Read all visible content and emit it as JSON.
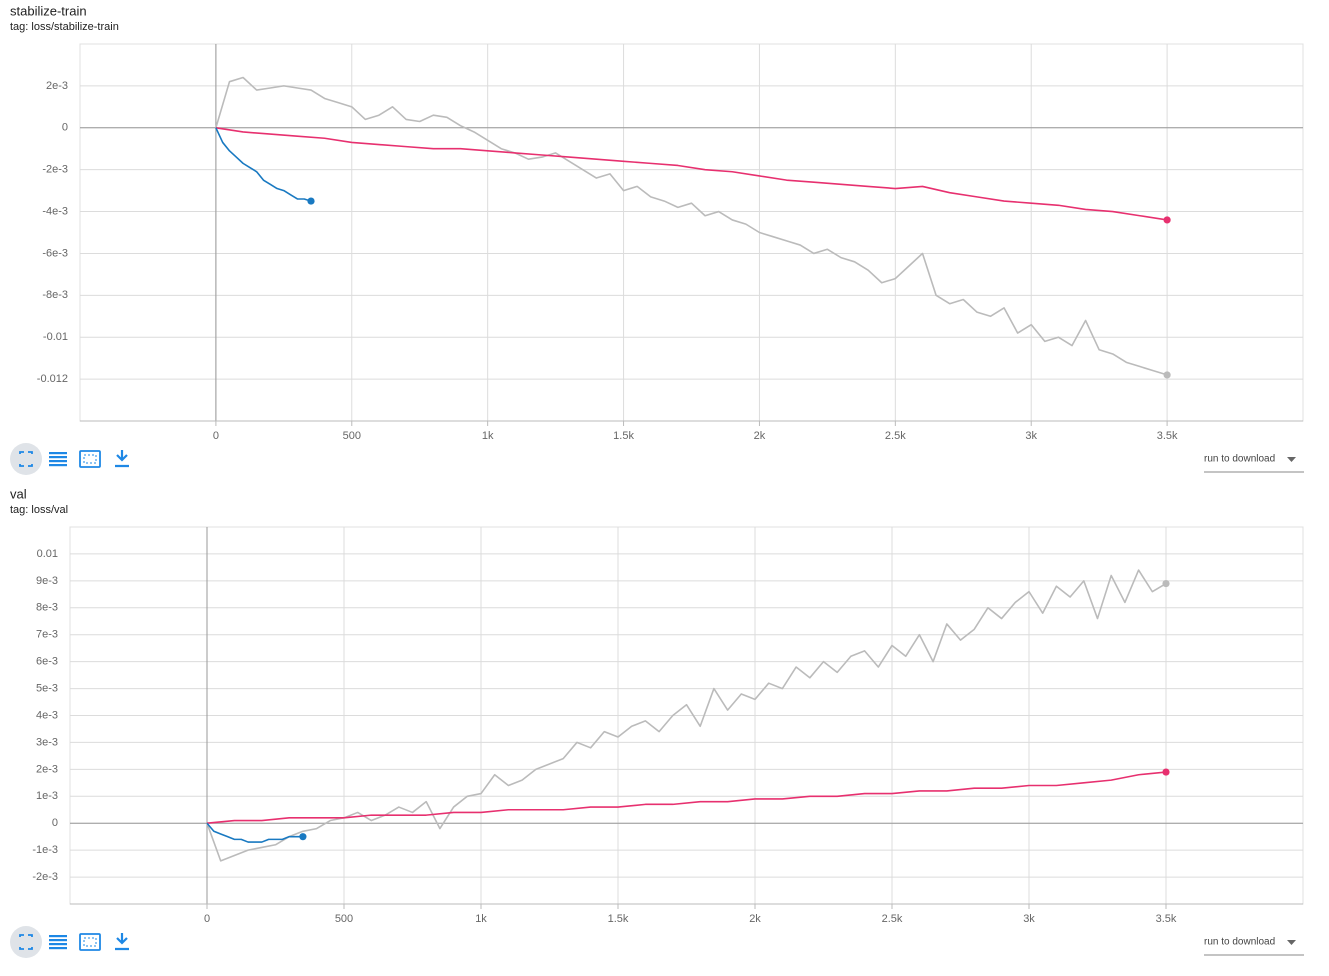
{
  "chart_data": [
    {
      "type": "line",
      "title": "stabilize-train",
      "subtitle": "tag: loss/stabilize-train",
      "xlim": [
        -500,
        4000
      ],
      "xticks": [
        0,
        500,
        {
          "value": 1000,
          "label": "1k"
        },
        {
          "value": 1500,
          "label": "1.5k"
        },
        {
          "value": 2000,
          "label": "2k"
        },
        {
          "value": 2500,
          "label": "2.5k"
        },
        {
          "value": 3000,
          "label": "3k"
        },
        {
          "value": 3500,
          "label": "3.5k"
        }
      ],
      "ylim": [
        -0.014,
        0.004
      ],
      "yticks": [
        {
          "value": 0.002,
          "label": "2e-3"
        },
        0,
        {
          "value": -0.002,
          "label": "-2e-3"
        },
        {
          "value": -0.004,
          "label": "-4e-3"
        },
        {
          "value": -0.006,
          "label": "-6e-3"
        },
        {
          "value": -0.008,
          "label": "-8e-3"
        },
        -0.01,
        -0.012
      ],
      "grid": true,
      "series": [
        {
          "color": "#bbbbbb",
          "x": [
            0,
            50,
            100,
            150,
            200,
            250,
            300,
            350,
            400,
            450,
            500,
            550,
            600,
            650,
            700,
            750,
            800,
            850,
            900,
            950,
            1000,
            1050,
            1100,
            1150,
            1200,
            1250,
            1300,
            1350,
            1400,
            1450,
            1500,
            1550,
            1600,
            1650,
            1700,
            1750,
            1800,
            1850,
            1900,
            1950,
            2000,
            2050,
            2100,
            2150,
            2200,
            2250,
            2300,
            2350,
            2400,
            2450,
            2500,
            2550,
            2600,
            2650,
            2700,
            2750,
            2800,
            2850,
            2900,
            2950,
            3000,
            3050,
            3100,
            3150,
            3200,
            3250,
            3300,
            3350,
            3400,
            3450,
            3500
          ],
          "values": [
            0,
            0.0022,
            0.0024,
            0.0018,
            0.0019,
            0.002,
            0.0019,
            0.0018,
            0.0014,
            0.0012,
            0.001,
            0.0004,
            0.0006,
            0.001,
            0.0004,
            0.0003,
            0.0006,
            0.0005,
            0.0001,
            -0.0002,
            -0.0006,
            -0.001,
            -0.0012,
            -0.0015,
            -0.0014,
            -0.0012,
            -0.0016,
            -0.002,
            -0.0024,
            -0.0022,
            -0.003,
            -0.0028,
            -0.0033,
            -0.0035,
            -0.0038,
            -0.0036,
            -0.0042,
            -0.004,
            -0.0044,
            -0.0046,
            -0.005,
            -0.0052,
            -0.0054,
            -0.0056,
            -0.006,
            -0.0058,
            -0.0062,
            -0.0064,
            -0.0068,
            -0.0074,
            -0.0072,
            -0.0066,
            -0.006,
            -0.008,
            -0.0084,
            -0.0082,
            -0.0088,
            -0.009,
            -0.0086,
            -0.0098,
            -0.0094,
            -0.0102,
            -0.01,
            -0.0104,
            -0.0092,
            -0.0106,
            -0.0108,
            -0.0112,
            -0.0114,
            -0.0116,
            -0.0118
          ]
        },
        {
          "color": "#e7306f",
          "x": [
            0,
            100,
            200,
            300,
            400,
            500,
            600,
            700,
            800,
            900,
            1000,
            1100,
            1200,
            1300,
            1400,
            1500,
            1600,
            1700,
            1800,
            1900,
            2000,
            2100,
            2200,
            2300,
            2400,
            2500,
            2600,
            2700,
            2800,
            2900,
            3000,
            3100,
            3200,
            3300,
            3400,
            3500
          ],
          "values": [
            0,
            -0.0002,
            -0.0003,
            -0.0004,
            -0.0005,
            -0.0007,
            -0.0008,
            -0.0009,
            -0.001,
            -0.001,
            -0.0011,
            -0.0012,
            -0.0013,
            -0.0014,
            -0.0015,
            -0.0016,
            -0.0017,
            -0.0018,
            -0.002,
            -0.0021,
            -0.0023,
            -0.0025,
            -0.0026,
            -0.0027,
            -0.0028,
            -0.0029,
            -0.0028,
            -0.0031,
            -0.0033,
            -0.0035,
            -0.0036,
            -0.0037,
            -0.0039,
            -0.004,
            -0.0042,
            -0.0044
          ]
        },
        {
          "color": "#1979c1",
          "x": [
            0,
            25,
            50,
            75,
            100,
            125,
            150,
            175,
            200,
            225,
            250,
            275,
            300,
            325,
            350
          ],
          "values": [
            0,
            -0.0007,
            -0.0011,
            -0.0014,
            -0.0017,
            -0.0019,
            -0.0021,
            -0.0025,
            -0.0027,
            -0.0029,
            -0.003,
            -0.0032,
            -0.0034,
            -0.0034,
            -0.0035
          ]
        }
      ]
    },
    {
      "type": "line",
      "title": "val",
      "subtitle": "tag: loss/val",
      "xlim": [
        -500,
        4000
      ],
      "xticks": [
        0,
        500,
        {
          "value": 1000,
          "label": "1k"
        },
        {
          "value": 1500,
          "label": "1.5k"
        },
        {
          "value": 2000,
          "label": "2k"
        },
        {
          "value": 2500,
          "label": "2.5k"
        },
        {
          "value": 3000,
          "label": "3k"
        },
        {
          "value": 3500,
          "label": "3.5k"
        }
      ],
      "ylim": [
        -0.003,
        0.011
      ],
      "yticks": [
        0.01,
        {
          "value": 0.009,
          "label": "9e-3"
        },
        {
          "value": 0.008,
          "label": "8e-3"
        },
        {
          "value": 0.007,
          "label": "7e-3"
        },
        {
          "value": 0.006,
          "label": "6e-3"
        },
        {
          "value": 0.005,
          "label": "5e-3"
        },
        {
          "value": 0.004,
          "label": "4e-3"
        },
        {
          "value": 0.003,
          "label": "3e-3"
        },
        {
          "value": 0.002,
          "label": "2e-3"
        },
        {
          "value": 0.001,
          "label": "1e-3"
        },
        0,
        {
          "value": -0.001,
          "label": "-1e-3"
        },
        {
          "value": -0.002,
          "label": "-2e-3"
        }
      ],
      "grid": true,
      "series": [
        {
          "color": "#bbbbbb",
          "x": [
            0,
            50,
            100,
            150,
            200,
            250,
            300,
            350,
            400,
            450,
            500,
            550,
            600,
            650,
            700,
            750,
            800,
            850,
            900,
            950,
            1000,
            1050,
            1100,
            1150,
            1200,
            1250,
            1300,
            1350,
            1400,
            1450,
            1500,
            1550,
            1600,
            1650,
            1700,
            1750,
            1800,
            1850,
            1900,
            1950,
            2000,
            2050,
            2100,
            2150,
            2200,
            2250,
            2300,
            2350,
            2400,
            2450,
            2500,
            2550,
            2600,
            2650,
            2700,
            2750,
            2800,
            2850,
            2900,
            2950,
            3000,
            3050,
            3100,
            3150,
            3200,
            3250,
            3300,
            3350,
            3400,
            3450,
            3500
          ],
          "values": [
            0,
            -0.0014,
            -0.0012,
            -0.001,
            -0.0009,
            -0.0008,
            -0.0005,
            -0.0003,
            -0.0002,
            0.0001,
            0.0002,
            0.0004,
            0.0001,
            0.0003,
            0.0006,
            0.0004,
            0.0008,
            -0.0002,
            0.0006,
            0.001,
            0.0011,
            0.0018,
            0.0014,
            0.0016,
            0.002,
            0.0022,
            0.0024,
            0.003,
            0.0028,
            0.0034,
            0.0032,
            0.0036,
            0.0038,
            0.0034,
            0.004,
            0.0044,
            0.0036,
            0.005,
            0.0042,
            0.0048,
            0.0046,
            0.0052,
            0.005,
            0.0058,
            0.0054,
            0.006,
            0.0056,
            0.0062,
            0.0064,
            0.0058,
            0.0066,
            0.0062,
            0.007,
            0.006,
            0.0074,
            0.0068,
            0.0072,
            0.008,
            0.0076,
            0.0082,
            0.0086,
            0.0078,
            0.0088,
            0.0084,
            0.009,
            0.0076,
            0.0092,
            0.0082,
            0.0094,
            0.0086,
            0.0089
          ]
        },
        {
          "color": "#e7306f",
          "x": [
            0,
            100,
            200,
            300,
            400,
            500,
            600,
            700,
            800,
            900,
            1000,
            1100,
            1200,
            1300,
            1400,
            1500,
            1600,
            1700,
            1800,
            1900,
            2000,
            2100,
            2200,
            2300,
            2400,
            2500,
            2600,
            2700,
            2800,
            2900,
            3000,
            3100,
            3200,
            3300,
            3400,
            3500
          ],
          "values": [
            0,
            0.0001,
            0.0001,
            0.0002,
            0.0002,
            0.0002,
            0.0003,
            0.0003,
            0.0003,
            0.0004,
            0.0004,
            0.0005,
            0.0005,
            0.0005,
            0.0006,
            0.0006,
            0.0007,
            0.0007,
            0.0008,
            0.0008,
            0.0009,
            0.0009,
            0.001,
            0.001,
            0.0011,
            0.0011,
            0.0012,
            0.0012,
            0.0013,
            0.0013,
            0.0014,
            0.0014,
            0.0015,
            0.0016,
            0.0018,
            0.0019
          ]
        },
        {
          "color": "#1979c1",
          "x": [
            0,
            25,
            50,
            75,
            100,
            125,
            150,
            175,
            200,
            225,
            250,
            275,
            300,
            325,
            350
          ],
          "values": [
            0,
            -0.0003,
            -0.0004,
            -0.0005,
            -0.0006,
            -0.0006,
            -0.0007,
            -0.0007,
            -0.0007,
            -0.0006,
            -0.0006,
            -0.0006,
            -0.0005,
            -0.0005,
            -0.0005
          ]
        }
      ]
    }
  ],
  "panels": [
    {
      "run_select": "run to download"
    },
    {
      "run_select": "run to download"
    }
  ]
}
